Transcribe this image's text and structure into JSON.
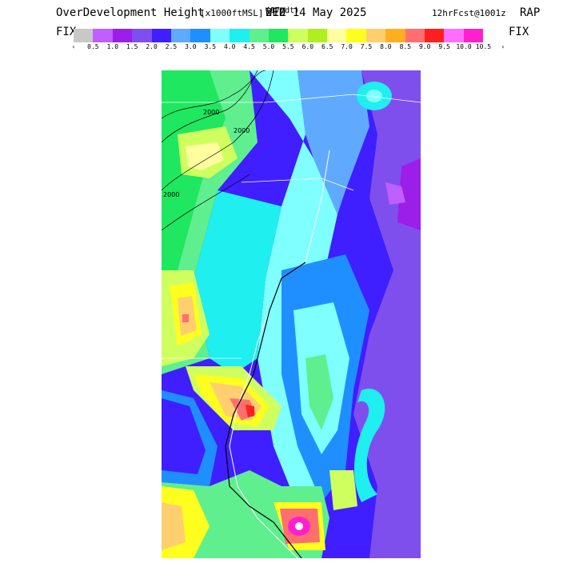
{
  "header": {
    "field_name": "OverDevelopment Height",
    "units": "[x1000ftMSL]",
    "valid_hour": "21Z",
    "local_time": "(17edt)",
    "date": "WED 14 May 2025",
    "forecast": "12hrFcst@1001z",
    "model": "RAP"
  },
  "colorbar": {
    "left_label": "FIX",
    "right_label": "FIX",
    "colors": [
      "#c8c8c8",
      "#bf5fff",
      "#9b1fe8",
      "#7f4fee",
      "#3f1fff",
      "#5faaff",
      "#1f8fff",
      "#7fffff",
      "#1fefef",
      "#5fef8f",
      "#1fe75f",
      "#cfff5f",
      "#afef1f",
      "#ffff9f",
      "#ffff1f",
      "#ffcf6f",
      "#ffaf1f",
      "#ff6f6f",
      "#ff1f1f",
      "#ff6fff",
      "#ff1fcf"
    ],
    "tick_labels": [
      "‹",
      "0.5",
      "1.0",
      "1.5",
      "2.0",
      "2.5",
      "3.0",
      "3.5",
      "4.0",
      "4.5",
      "5.0",
      "5.5",
      "6.0",
      "6.5",
      "7.0",
      "7.5",
      "8.0",
      "8.5",
      "9.0",
      "9.5",
      "10.0",
      "10.5",
      "›"
    ]
  },
  "map": {
    "contour_labels": [
      "2000",
      "2000",
      "2000"
    ]
  }
}
